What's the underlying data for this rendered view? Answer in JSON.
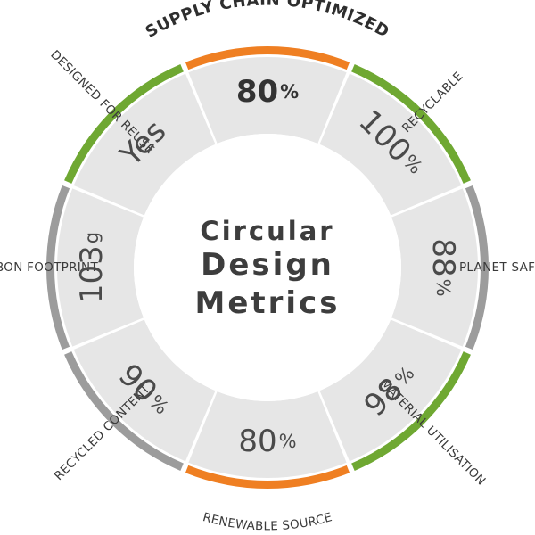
{
  "title": {
    "line1": "Circular",
    "line2": "Design",
    "line3": "Metrics"
  },
  "colors": {
    "orange": "#ef7f22",
    "green": "#6fa832",
    "gray": "#9c9c9c",
    "segment_fill": "#e6e6e6",
    "text": "#4a4a4a"
  },
  "segments": [
    {
      "id": "supply-chain-optimized",
      "label": "SUPPLY CHAIN OPTIMIZED",
      "value": "80",
      "unit": "%",
      "band": "orange"
    },
    {
      "id": "recyclable",
      "label": "RECYCLABLE",
      "value": "100",
      "unit": "%",
      "band": "green"
    },
    {
      "id": "planet-safe",
      "label": "PLANET SAFE",
      "value": "88",
      "unit": "%",
      "band": "gray"
    },
    {
      "id": "material-utilisation",
      "label": "MATERIAL UTILISATION",
      "value": "98",
      "unit": "%",
      "band": "green"
    },
    {
      "id": "renewable-source",
      "label": "RENEWABLE SOURCE",
      "value": "80",
      "unit": "%",
      "band": "orange"
    },
    {
      "id": "recycled-content",
      "label": "RECYCLED CONTENT",
      "value": "90",
      "unit": "%",
      "band": "gray"
    },
    {
      "id": "carbon-footprint",
      "label": "CARBON FOOTPRINT",
      "value": "103",
      "unit": "g",
      "band": "gray"
    },
    {
      "id": "designed-for-reuse",
      "label": "DESIGNED FOR REUSE",
      "value": "Yes",
      "unit": "",
      "band": "green"
    }
  ]
}
